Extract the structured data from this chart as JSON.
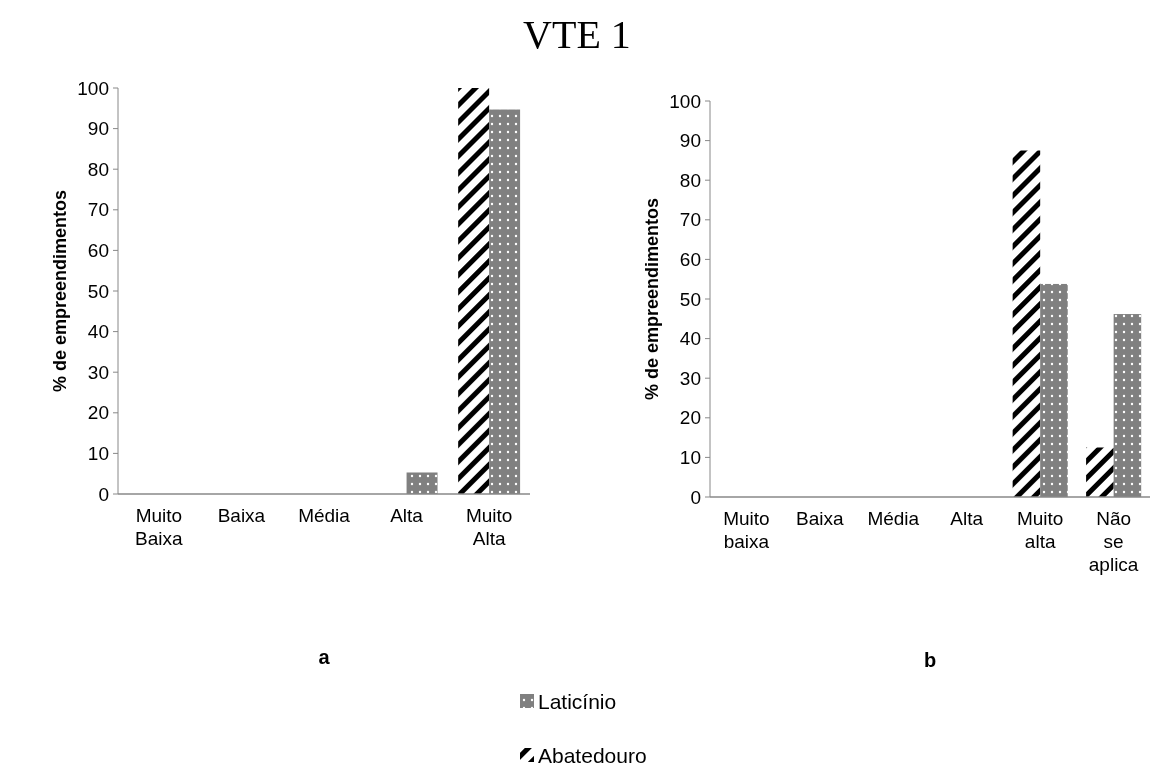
{
  "chart_data": [
    {
      "type": "bar",
      "title": "VTE 1",
      "xlabel": "a",
      "ylabel": "% de empreendimentos",
      "categories": [
        "Muito Baixa",
        "Baixa",
        "Média",
        "Alta",
        "Muito Alta"
      ],
      "series": [
        {
          "name": "Abatedouro",
          "color": "#000000",
          "values": [
            0,
            0,
            0,
            0,
            100
          ]
        },
        {
          "name": "Laticínio",
          "color": "#808080",
          "values": [
            0,
            0,
            0,
            5.3,
            94.7
          ]
        }
      ],
      "ylim": [
        0,
        100
      ],
      "yticks": [
        0,
        10,
        20,
        30,
        40,
        50,
        60,
        70,
        80,
        90,
        100
      ],
      "grid": false,
      "legend": "bottom"
    },
    {
      "type": "bar",
      "xlabel": "b",
      "ylabel": "% de empreendimentos",
      "categories": [
        "Muito baixa",
        "Baixa",
        "Média",
        "Alta",
        "Muito alta",
        "Não se aplica"
      ],
      "series": [
        {
          "color": "#000000",
          "values": [
            0,
            0,
            0,
            0,
            87.5,
            12.5
          ]
        },
        {
          "color": "#808080",
          "values": [
            0,
            0,
            0,
            0,
            53.8,
            46.2
          ]
        }
      ],
      "ylim": [
        0,
        100
      ],
      "yticks": [
        0,
        10,
        20,
        30,
        40,
        50,
        60,
        70,
        80,
        90,
        100
      ],
      "grid": false
    }
  ]
}
